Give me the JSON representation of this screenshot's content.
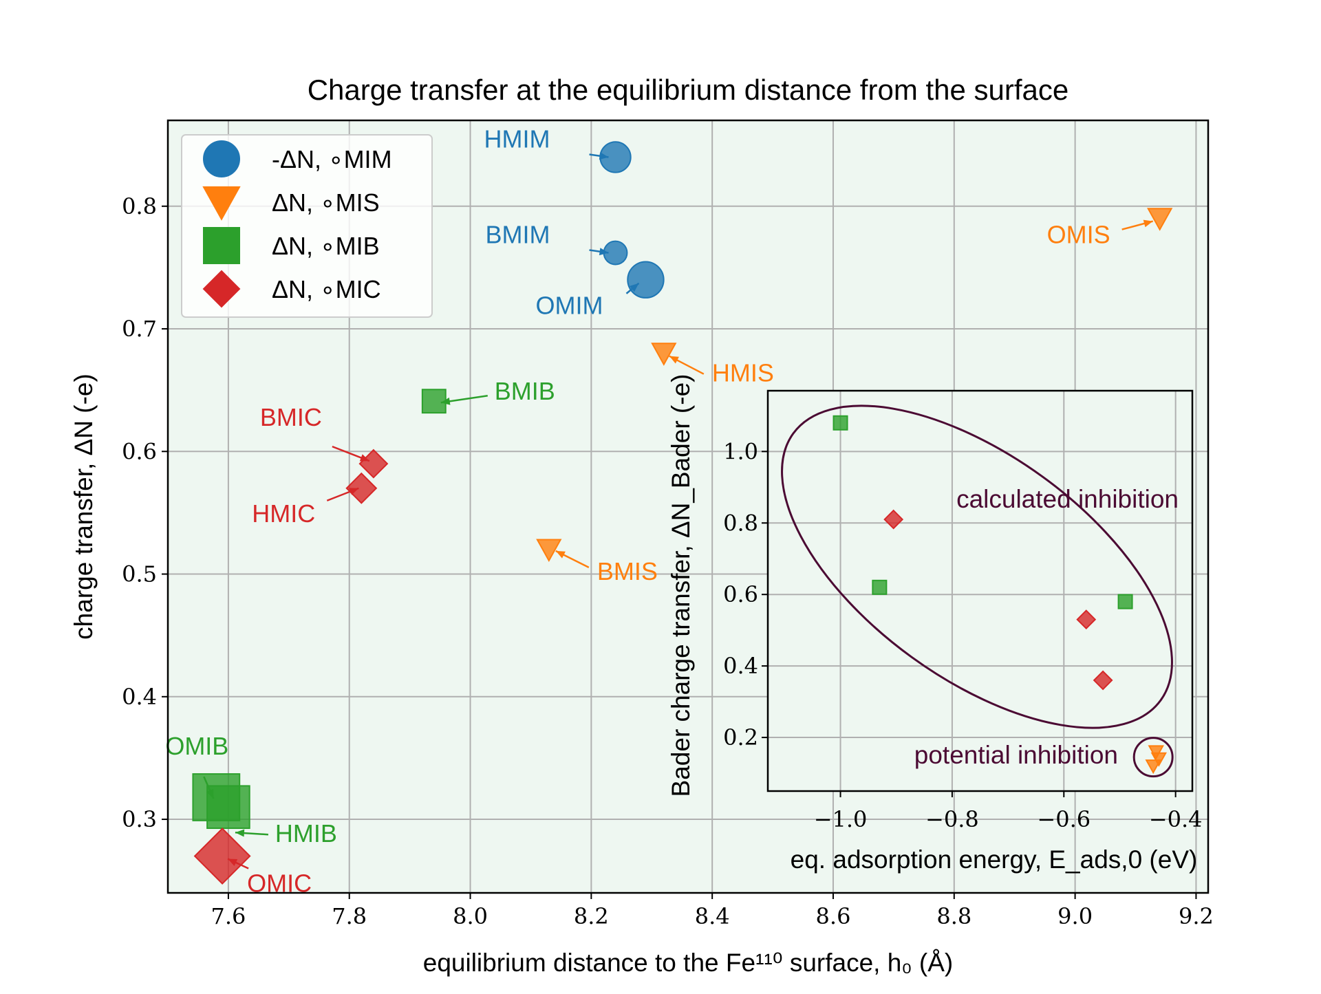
{
  "chart_data": [
    {
      "type": "scatter",
      "title": "Charge transfer at the equilibrium distance from the surface",
      "xlabel": "equilibrium distance to the Fe¹¹⁰ surface, h₀ (Å)",
      "ylabel": "charge transfer, ΔN (-e)",
      "xlim": [
        7.5,
        9.22
      ],
      "ylim": [
        0.24,
        0.87
      ],
      "xticks": [
        7.6,
        7.8,
        8.0,
        8.2,
        8.4,
        8.6,
        8.8,
        9.0,
        9.2
      ],
      "xtick_labels": [
        "7.6",
        "7.8",
        "8.0",
        "8.2",
        "8.4",
        "8.6",
        "8.8",
        "9.0",
        "9.2"
      ],
      "yticks": [
        0.3,
        0.4,
        0.5,
        0.6,
        0.7,
        0.8
      ],
      "ytick_labels": [
        "0.3",
        "0.4",
        "0.5",
        "0.6",
        "0.7",
        "0.8"
      ],
      "grid": true,
      "legend_position": "top-left",
      "series": [
        {
          "name": "-ΔN, ∘MIM",
          "marker": "circle",
          "color": "#1f77b4",
          "points": [
            {
              "label": "HMIM",
              "x": 8.24,
              "y": 0.84,
              "size": 0.72
            },
            {
              "label": "BMIM",
              "x": 8.24,
              "y": 0.762,
              "size": 0.55
            },
            {
              "label": "OMIM",
              "x": 8.29,
              "y": 0.74,
              "size": 0.85
            }
          ]
        },
        {
          "name": "ΔN, ∘MIS",
          "marker": "triangle-down",
          "color": "#ff7f0e",
          "points": [
            {
              "label": "OMIS",
              "x": 9.14,
              "y": 0.79,
              "size": 0.55
            },
            {
              "label": "HMIS",
              "x": 8.32,
              "y": 0.68,
              "size": 0.55
            },
            {
              "label": "BMIS",
              "x": 8.13,
              "y": 0.52,
              "size": 0.55
            }
          ]
        },
        {
          "name": "ΔN, ∘MIB",
          "marker": "square",
          "color": "#2ca02c",
          "points": [
            {
              "label": "BMIB",
              "x": 7.94,
              "y": 0.641,
              "size": 0.55
            },
            {
              "label": "OMIB",
              "x": 7.58,
              "y": 0.318,
              "size": 1.1
            },
            {
              "label": "HMIB",
              "x": 7.6,
              "y": 0.31,
              "size": 1.0
            }
          ]
        },
        {
          "name": "ΔN, ∘MIC",
          "marker": "diamond",
          "color": "#d62728",
          "points": [
            {
              "label": "BMIC",
              "x": 7.84,
              "y": 0.59,
              "size": 0.65
            },
            {
              "label": "HMIC",
              "x": 7.82,
              "y": 0.57,
              "size": 0.7
            },
            {
              "label": "OMIC",
              "x": 7.59,
              "y": 0.27,
              "size": 1.3
            }
          ]
        }
      ]
    },
    {
      "type": "scatter",
      "title": "",
      "xlabel": "eq. adsorption energy, E_ads,0 (eV)",
      "ylabel": "Bader charge transfer, ΔN_Bader (-e)",
      "xlim": [
        -1.13,
        -0.37
      ],
      "ylim": [
        0.05,
        1.17
      ],
      "xticks": [
        -1.0,
        -0.8,
        -0.6,
        -0.4
      ],
      "xtick_labels": [
        "−1.0",
        "−0.8",
        "−0.6",
        "−0.4"
      ],
      "yticks": [
        0.2,
        0.4,
        0.6,
        0.8,
        1.0
      ],
      "ytick_labels": [
        "0.2",
        "0.4",
        "0.6",
        "0.8",
        "1.0"
      ],
      "grid": true,
      "annotations": [
        "calculated inhibition",
        "potential inhibition"
      ],
      "series": [
        {
          "name": "MIB",
          "marker": "square",
          "color": "#2ca02c",
          "points": [
            {
              "x": -1.0,
              "y": 1.08
            },
            {
              "x": -0.93,
              "y": 0.62
            },
            {
              "x": -0.49,
              "y": 0.58
            }
          ]
        },
        {
          "name": "MIC",
          "marker": "diamond",
          "color": "#d62728",
          "points": [
            {
              "x": -0.905,
              "y": 0.81
            },
            {
              "x": -0.56,
              "y": 0.53
            },
            {
              "x": -0.53,
              "y": 0.36
            }
          ]
        },
        {
          "name": "MIS",
          "marker": "triangle-down",
          "color": "#ff7f0e",
          "points": [
            {
              "x": -0.44,
              "y": 0.12
            },
            {
              "x": -0.43,
              "y": 0.14
            },
            {
              "x": -0.435,
              "y": 0.16
            }
          ]
        }
      ]
    }
  ],
  "annotation_color": "#4b0a33",
  "background_color": "#eef7f1"
}
